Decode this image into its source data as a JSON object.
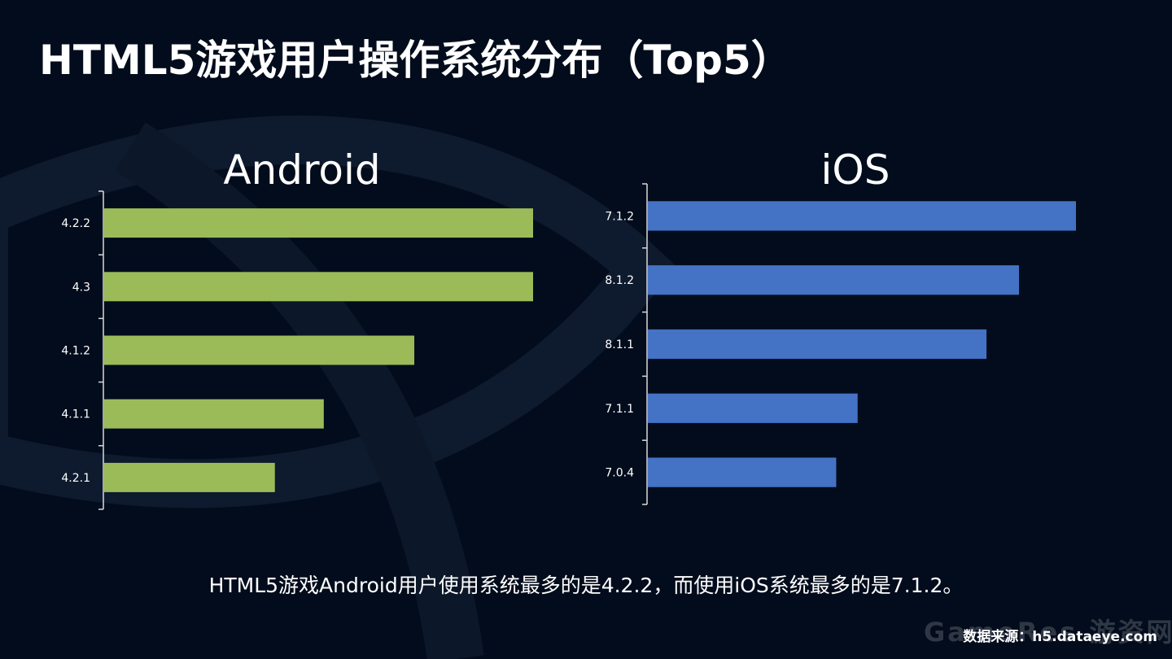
{
  "title": "HTML5游戏用户操作系统分布（Top5）",
  "caption": "HTML5游戏Android用户使用系统最多的是4.2.2，而使用iOS系统最多的是7.1.2。",
  "source": "数据来源：h5.dataeye.com",
  "watermark": "GameRes 游资网",
  "colors": {
    "background": "#030c1c",
    "android_bar": "#9bbb59",
    "ios_bar": "#4472c4",
    "text": "#ffffff"
  },
  "chart_data": [
    {
      "type": "bar",
      "orientation": "horizontal",
      "title": "Android",
      "categories": [
        "4.2.2",
        "4.3",
        "4.1.2",
        "4.1.1",
        "4.2.1"
      ],
      "values": [
        100,
        100,
        72.3,
        51.2,
        39.8
      ],
      "xlim": [
        0,
        100
      ]
    },
    {
      "type": "bar",
      "orientation": "horizontal",
      "title": "iOS",
      "categories": [
        "7.1.2",
        "8.1.2",
        "8.1.1",
        "7.1.1",
        "7.0.4"
      ],
      "values": [
        100,
        86.7,
        79.1,
        49.0,
        44.0
      ],
      "xlim": [
        0,
        100
      ]
    }
  ]
}
